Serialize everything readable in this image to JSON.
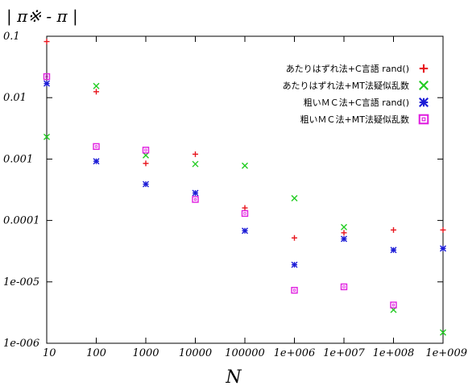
{
  "chart_data": {
    "type": "scatter",
    "ylabel": "| π※ - π |",
    "xlabel": "N",
    "xscale": "log",
    "yscale": "log",
    "xlim": [
      10,
      1000000000
    ],
    "ylim": [
      1e-06,
      0.1
    ],
    "grid": false,
    "legend_position": "top-right",
    "x_ticks": [
      {
        "value": 10,
        "label": "10"
      },
      {
        "value": 100,
        "label": "100"
      },
      {
        "value": 1000,
        "label": "1000"
      },
      {
        "value": 10000,
        "label": "10000"
      },
      {
        "value": 100000,
        "label": "100000"
      },
      {
        "value": 1000000,
        "label": "1e+006"
      },
      {
        "value": 10000000,
        "label": "1e+007"
      },
      {
        "value": 100000000,
        "label": "1e+008"
      },
      {
        "value": 1000000000,
        "label": "1e+009"
      }
    ],
    "y_ticks": [
      {
        "value": 0.1,
        "label": "0.1"
      },
      {
        "value": 0.01,
        "label": "0.01"
      },
      {
        "value": 0.001,
        "label": "0.001"
      },
      {
        "value": 0.0001,
        "label": "0.0001"
      },
      {
        "value": 1e-05,
        "label": "1e-005"
      },
      {
        "value": 1e-06,
        "label": "1e-006"
      }
    ],
    "series": [
      {
        "name": "あたりはずれ法+C言語 rand()",
        "marker": "plus",
        "color": "#e8141c",
        "points": [
          [
            10,
            0.082
          ],
          [
            100,
            0.0125
          ],
          [
            1000,
            0.00085
          ],
          [
            10000,
            0.0012
          ],
          [
            100000,
            0.00016
          ],
          [
            1000000,
            5.2e-05
          ],
          [
            10000000,
            6.3e-05
          ],
          [
            100000000,
            7e-05
          ],
          [
            1000000000,
            7e-05
          ]
        ]
      },
      {
        "name": "あたりはずれ法+MT法疑似乱数",
        "marker": "x",
        "color": "#22cc22",
        "points": [
          [
            10,
            0.0023
          ],
          [
            100,
            0.0155
          ],
          [
            1000,
            0.00115
          ],
          [
            10000,
            0.00083
          ],
          [
            100000,
            0.00078
          ],
          [
            1000000,
            0.00023
          ],
          [
            10000000,
            7.8e-05
          ],
          [
            100000000,
            3.5e-06
          ],
          [
            1000000000,
            1.5e-06
          ]
        ]
      },
      {
        "name": "粗いＭＣ法+C言語 rand()",
        "marker": "star",
        "color": "#1c1cd6",
        "points": [
          [
            10,
            0.017
          ],
          [
            100,
            0.00092
          ],
          [
            1000,
            0.00039
          ],
          [
            10000,
            0.00028
          ],
          [
            100000,
            6.8e-05
          ],
          [
            1000000,
            1.9e-05
          ],
          [
            10000000,
            5e-05
          ],
          [
            100000000,
            3.3e-05
          ],
          [
            1000000000,
            3.5e-05
          ]
        ]
      },
      {
        "name": "粗いＭＣ法+MT法疑似乱数",
        "marker": "square",
        "color": "#e020e0",
        "points": [
          [
            10,
            0.022
          ],
          [
            100,
            0.0016
          ],
          [
            1000,
            0.0014
          ],
          [
            10000,
            0.00022
          ],
          [
            100000,
            0.00013
          ],
          [
            1000000,
            7.3e-06
          ],
          [
            10000000,
            8.3e-06
          ],
          [
            100000000,
            4.2e-06
          ]
        ]
      }
    ]
  }
}
